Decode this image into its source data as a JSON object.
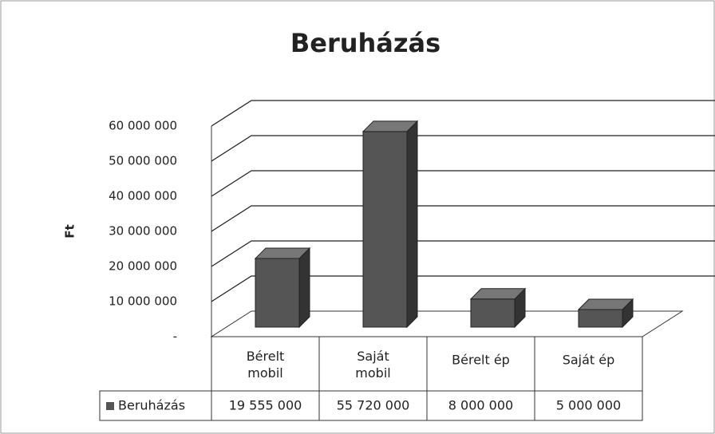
{
  "chart_data": {
    "type": "bar3d",
    "title": "Beruházás",
    "y_label": "Ft",
    "categories": [
      "Bérelt mobil",
      "Saját mobil",
      "Bérelt ép",
      "Saját ép"
    ],
    "series": [
      {
        "name": "Beruházás",
        "color": "#555555",
        "values": [
          19555000,
          55720000,
          8000000,
          5000000
        ],
        "value_labels": [
          "19 555 000",
          "55 720 000",
          "8 000 000",
          "5 000 000"
        ]
      }
    ],
    "ylim": [
      0,
      60000000
    ],
    "yticks": [
      {
        "value": 0,
        "label": "-"
      },
      {
        "value": 10000000,
        "label": "10 000 000"
      },
      {
        "value": 20000000,
        "label": "20 000 000"
      },
      {
        "value": 30000000,
        "label": "30 000 000"
      },
      {
        "value": 40000000,
        "label": "40 000 000"
      },
      {
        "value": 50000000,
        "label": "50 000 000"
      },
      {
        "value": 60000000,
        "label": "60 000 000"
      }
    ],
    "grid": true,
    "data_table": true
  }
}
